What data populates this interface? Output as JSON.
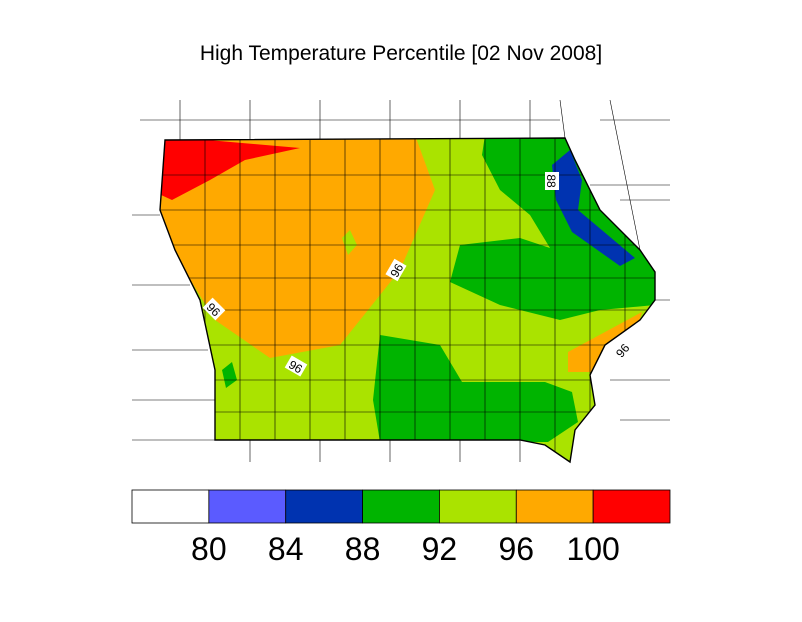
{
  "title": "High Temperature Percentile [02 Nov 2008]",
  "colorbar": {
    "colors": [
      "#ffffff",
      "#5b5bff",
      "#0033b0",
      "#00b400",
      "#aae300",
      "#ffa900",
      "#ff0000"
    ],
    "ticks": [
      80,
      84,
      88,
      92,
      96,
      100
    ]
  },
  "contour_labels": [
    "88",
    "96",
    "96",
    "96",
    "96"
  ]
}
